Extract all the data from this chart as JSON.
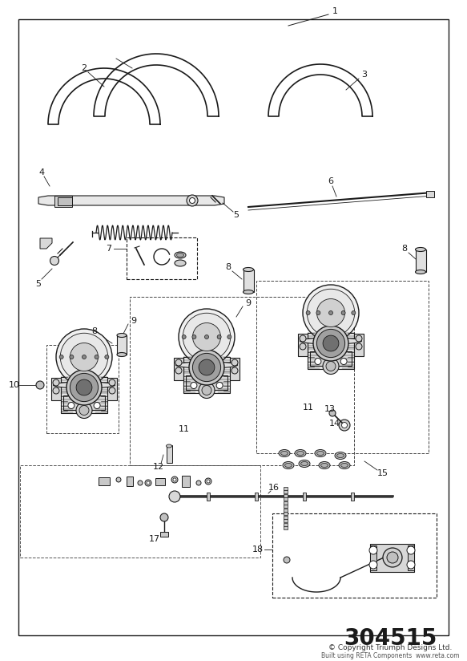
{
  "bg_color": "#ffffff",
  "border_color": "#1a1a1a",
  "line_color": "#1a1a1a",
  "text_color": "#1a1a1a",
  "fig_width": 5.83,
  "fig_height": 8.24,
  "dpi": 100,
  "part_number": "304515",
  "copyright": "© Copyright Triumph Designs Ltd.",
  "sub_text": "Built using RETA Components  www.reta.com",
  "label_fontsize": 8,
  "pn_fontsize": 20,
  "note_label1": "1",
  "note_label2": "2",
  "note_label3": "3",
  "note_label4": "4",
  "note_label5": "5",
  "note_label6": "6",
  "note_label7": "7",
  "note_label8": "8",
  "note_label9": "9",
  "note_label10": "10",
  "note_label11": "11",
  "note_label12": "12",
  "note_label13": "13",
  "note_label14": "14",
  "note_label15": "15",
  "note_label16": "16",
  "note_label17": "17",
  "note_label18": "18"
}
